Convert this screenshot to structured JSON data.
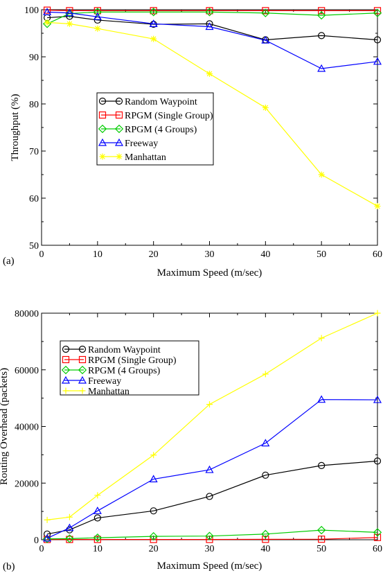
{
  "chart_data": [
    {
      "type": "line",
      "panel_label": "(a)",
      "xlabel": "Maximum Speed (m/sec)",
      "ylabel": "Throughput (%)",
      "xlim": [
        0,
        60
      ],
      "ylim": [
        50,
        100
      ],
      "xticks": [
        0,
        10,
        20,
        30,
        40,
        50,
        60
      ],
      "yticks": [
        50,
        60,
        70,
        80,
        90,
        100
      ],
      "legend": "center-left",
      "series": [
        {
          "name": "Random Waypoint",
          "color": "#000000",
          "marker": "circle",
          "x": [
            1,
            5,
            10,
            20,
            30,
            40,
            50,
            60
          ],
          "y": [
            98.3,
            98.6,
            97.8,
            96.9,
            97.0,
            93.6,
            94.5,
            93.6
          ]
        },
        {
          "name": "RPGM (Single Group)",
          "color": "#ff0000",
          "marker": "square",
          "x": [
            1,
            5,
            10,
            20,
            30,
            40,
            50,
            60
          ],
          "y": [
            99.9,
            99.8,
            99.8,
            99.8,
            99.8,
            99.8,
            99.8,
            99.8
          ]
        },
        {
          "name": "RPGM (4 Groups)",
          "color": "#00cc00",
          "marker": "diamond",
          "x": [
            1,
            5,
            10,
            20,
            30,
            40,
            50,
            60
          ],
          "y": [
            97.0,
            99.2,
            99.5,
            99.5,
            99.5,
            99.3,
            98.8,
            99.3
          ]
        },
        {
          "name": "Freeway",
          "color": "#0000ff",
          "marker": "triangle",
          "x": [
            1,
            5,
            10,
            20,
            30,
            40,
            50,
            60
          ],
          "y": [
            99.5,
            99.3,
            98.5,
            97.0,
            96.4,
            93.5,
            87.5,
            89.0
          ]
        },
        {
          "name": "Manhattan",
          "color": "#ffff00",
          "marker": "star",
          "x": [
            1,
            5,
            10,
            20,
            30,
            40,
            50,
            60
          ],
          "y": [
            97.3,
            97.0,
            96.0,
            93.8,
            86.4,
            79.2,
            65.0,
            58.3
          ]
        }
      ]
    },
    {
      "type": "line",
      "panel_label": "(b)",
      "xlabel": "Maximum Speed (m/sec)",
      "ylabel": "Routing Overhead (packets)",
      "xlim": [
        0,
        60
      ],
      "ylim": [
        0,
        80000
      ],
      "xticks": [
        0,
        10,
        20,
        30,
        40,
        50,
        60
      ],
      "yticks": [
        0,
        20000,
        40000,
        60000,
        80000
      ],
      "legend": "top-left",
      "series": [
        {
          "name": "Random Waypoint",
          "color": "#000000",
          "marker": "circle",
          "x": [
            1,
            5,
            10,
            20,
            30,
            40,
            50,
            60
          ],
          "y": [
            2000,
            3500,
            7700,
            10200,
            15300,
            22800,
            26200,
            27800
          ]
        },
        {
          "name": "RPGM (Single Group)",
          "color": "#ff0000",
          "marker": "square",
          "x": [
            1,
            5,
            10,
            20,
            30,
            40,
            50,
            60
          ],
          "y": [
            100,
            100,
            100,
            100,
            100,
            150,
            200,
            800
          ]
        },
        {
          "name": "RPGM (4 Groups)",
          "color": "#00cc00",
          "marker": "diamond",
          "x": [
            1,
            5,
            10,
            20,
            30,
            40,
            50,
            60
          ],
          "y": [
            300,
            400,
            700,
            1200,
            1300,
            2000,
            3400,
            2600
          ]
        },
        {
          "name": "Freeway",
          "color": "#0000ff",
          "marker": "triangle",
          "x": [
            1,
            5,
            10,
            20,
            30,
            40,
            50,
            60
          ],
          "y": [
            500,
            4200,
            10200,
            21400,
            24700,
            34100,
            49500,
            49400
          ]
        },
        {
          "name": "Manhattan",
          "color": "#ffff00",
          "marker": "plus",
          "x": [
            1,
            5,
            10,
            20,
            30,
            40,
            50,
            60
          ],
          "y": [
            7000,
            8000,
            15700,
            29900,
            47800,
            58500,
            71200,
            80000
          ]
        }
      ]
    }
  ]
}
